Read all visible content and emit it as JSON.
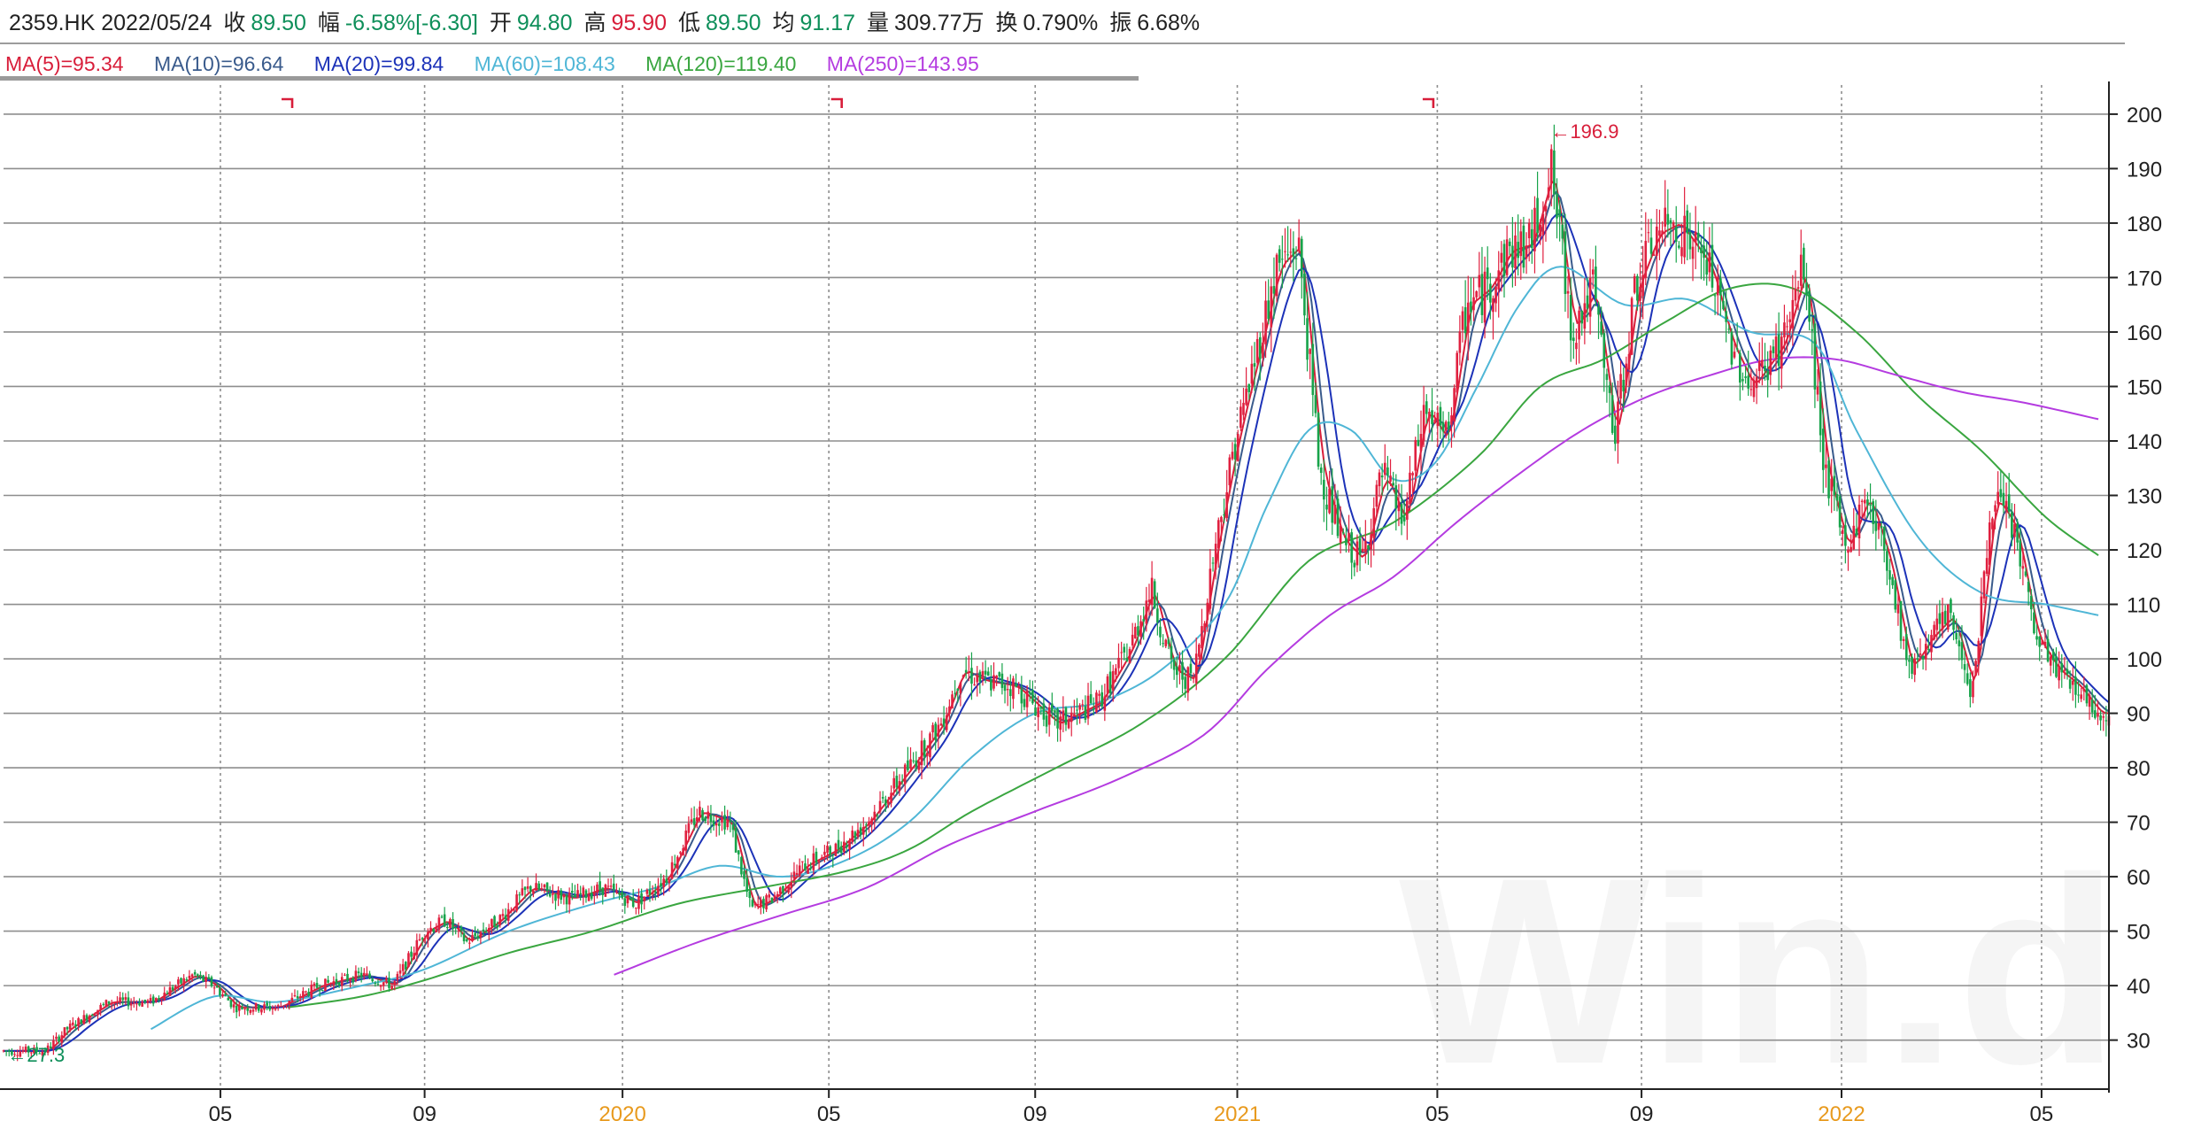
{
  "header": {
    "code_date": "2359.HK 2022/05/24",
    "close_label": "收",
    "close": "89.50",
    "change_label": "幅",
    "change": "-6.58%[-6.30]",
    "open_label": "开",
    "open": "94.80",
    "high_label": "高",
    "high": "95.90",
    "low_label": "低",
    "low": "89.50",
    "avg_label": "均",
    "avg": "91.17",
    "vol_label": "量",
    "vol": "309.77万",
    "turnover_label": "换",
    "turnover": "0.790%",
    "amp_label": "振",
    "amp": "6.68%"
  },
  "ma_legend": [
    {
      "text": "MA(5)=95.34",
      "color": "#d81e3a"
    },
    {
      "text": "MA(10)=96.64",
      "color": "#3a5b8c"
    },
    {
      "text": "MA(20)=99.84",
      "color": "#1c32b8"
    },
    {
      "text": "MA(60)=108.43",
      "color": "#4fb6d6"
    },
    {
      "text": "MA(120)=119.40",
      "color": "#3aa640"
    },
    {
      "text": "MA(250)=143.95",
      "color": "#b43be0"
    }
  ],
  "watermark": "Win.d",
  "chart_data": {
    "type": "line",
    "ylim": [
      21,
      206
    ],
    "y_ticks": [
      30,
      40,
      50,
      60,
      70,
      80,
      90,
      100,
      110,
      120,
      130,
      140,
      150,
      160,
      170,
      180,
      190,
      200
    ],
    "x_ticks": [
      {
        "label": "05",
        "t": 0.103,
        "year": false
      },
      {
        "label": "09",
        "t": 0.2,
        "year": false
      },
      {
        "label": "2020",
        "t": 0.294,
        "year": true
      },
      {
        "label": "05",
        "t": 0.392,
        "year": false
      },
      {
        "label": "09",
        "t": 0.49,
        "year": false
      },
      {
        "label": "2021",
        "t": 0.586,
        "year": true
      },
      {
        "label": "05",
        "t": 0.681,
        "year": false
      },
      {
        "label": "09",
        "t": 0.778,
        "year": false
      },
      {
        "label": "2022",
        "t": 0.873,
        "year": true
      },
      {
        "label": "05",
        "t": 0.968,
        "year": false
      }
    ],
    "annotations": [
      {
        "text": "←196.9",
        "t": 0.734,
        "y": 196.9,
        "kind": "high"
      },
      {
        "text": "←27.3",
        "t": 0.001,
        "y": 27.3,
        "kind": "low"
      }
    ],
    "price_path": [
      [
        0.0,
        28
      ],
      [
        0.02,
        28
      ],
      [
        0.03,
        32
      ],
      [
        0.05,
        37
      ],
      [
        0.07,
        37
      ],
      [
        0.09,
        42
      ],
      [
        0.1,
        40
      ],
      [
        0.11,
        36
      ],
      [
        0.13,
        36
      ],
      [
        0.15,
        40
      ],
      [
        0.17,
        42
      ],
      [
        0.185,
        40
      ],
      [
        0.2,
        50
      ],
      [
        0.21,
        52
      ],
      [
        0.22,
        48
      ],
      [
        0.235,
        52
      ],
      [
        0.25,
        58
      ],
      [
        0.27,
        56
      ],
      [
        0.285,
        58
      ],
      [
        0.3,
        55
      ],
      [
        0.315,
        60
      ],
      [
        0.33,
        72
      ],
      [
        0.345,
        70
      ],
      [
        0.355,
        54
      ],
      [
        0.365,
        56
      ],
      [
        0.38,
        62
      ],
      [
        0.395,
        65
      ],
      [
        0.41,
        70
      ],
      [
        0.43,
        80
      ],
      [
        0.445,
        88
      ],
      [
        0.455,
        98
      ],
      [
        0.465,
        96
      ],
      [
        0.48,
        95
      ],
      [
        0.5,
        88
      ],
      [
        0.52,
        92
      ],
      [
        0.535,
        102
      ],
      [
        0.545,
        113
      ],
      [
        0.555,
        98
      ],
      [
        0.565,
        96
      ],
      [
        0.575,
        120
      ],
      [
        0.585,
        140
      ],
      [
        0.595,
        156
      ],
      [
        0.605,
        172
      ],
      [
        0.615,
        176
      ],
      [
        0.625,
        135
      ],
      [
        0.635,
        122
      ],
      [
        0.645,
        118
      ],
      [
        0.655,
        134
      ],
      [
        0.665,
        125
      ],
      [
        0.675,
        146
      ],
      [
        0.685,
        140
      ],
      [
        0.695,
        165
      ],
      [
        0.705,
        168
      ],
      [
        0.715,
        175
      ],
      [
        0.725,
        176
      ],
      [
        0.735,
        190
      ],
      [
        0.745,
        160
      ],
      [
        0.755,
        168
      ],
      [
        0.765,
        140
      ],
      [
        0.775,
        168
      ],
      [
        0.785,
        178
      ],
      [
        0.795,
        180
      ],
      [
        0.81,
        172
      ],
      [
        0.82,
        158
      ],
      [
        0.83,
        150
      ],
      [
        0.845,
        158
      ],
      [
        0.855,
        172
      ],
      [
        0.865,
        135
      ],
      [
        0.875,
        120
      ],
      [
        0.885,
        130
      ],
      [
        0.895,
        118
      ],
      [
        0.905,
        98
      ],
      [
        0.915,
        104
      ],
      [
        0.925,
        108
      ],
      [
        0.935,
        94
      ],
      [
        0.945,
        130
      ],
      [
        0.955,
        124
      ],
      [
        0.965,
        104
      ],
      [
        0.975,
        98
      ],
      [
        0.985,
        95
      ],
      [
        0.995,
        90
      ]
    ],
    "series": [
      {
        "name": "MA(5)",
        "color": "#d81e3a",
        "lag": 0.004,
        "smooth": 1
      },
      {
        "name": "MA(10)",
        "color": "#3a5b8c",
        "lag": 0.008,
        "smooth": 2
      },
      {
        "name": "MA(20)",
        "color": "#1c32b8",
        "lag": 0.016,
        "smooth": 3
      },
      {
        "name": "MA(60)",
        "color": "#4fb6d6",
        "lag": 0.045,
        "smooth": 6,
        "start": 0.07,
        "points": [
          [
            0.07,
            32
          ],
          [
            0.1,
            38
          ],
          [
            0.13,
            37
          ],
          [
            0.17,
            40
          ],
          [
            0.2,
            43
          ],
          [
            0.24,
            50
          ],
          [
            0.28,
            55
          ],
          [
            0.31,
            58
          ],
          [
            0.34,
            62
          ],
          [
            0.37,
            60
          ],
          [
            0.4,
            63
          ],
          [
            0.43,
            70
          ],
          [
            0.46,
            82
          ],
          [
            0.49,
            90
          ],
          [
            0.52,
            92
          ],
          [
            0.55,
            98
          ],
          [
            0.58,
            110
          ],
          [
            0.6,
            128
          ],
          [
            0.62,
            142
          ],
          [
            0.64,
            142
          ],
          [
            0.66,
            133
          ],
          [
            0.68,
            136
          ],
          [
            0.7,
            150
          ],
          [
            0.72,
            165
          ],
          [
            0.74,
            172
          ],
          [
            0.77,
            165
          ],
          [
            0.8,
            166
          ],
          [
            0.83,
            160
          ],
          [
            0.86,
            158
          ],
          [
            0.88,
            142
          ],
          [
            0.91,
            122
          ],
          [
            0.94,
            112
          ],
          [
            0.97,
            110
          ],
          [
            0.995,
            108
          ]
        ]
      },
      {
        "name": "MA(120)",
        "color": "#3aa640",
        "lag": 0.09,
        "smooth": 10,
        "start": 0.135,
        "points": [
          [
            0.135,
            36
          ],
          [
            0.17,
            38
          ],
          [
            0.2,
            41
          ],
          [
            0.24,
            46
          ],
          [
            0.28,
            50
          ],
          [
            0.32,
            55
          ],
          [
            0.36,
            58
          ],
          [
            0.4,
            61
          ],
          [
            0.43,
            65
          ],
          [
            0.46,
            72
          ],
          [
            0.5,
            80
          ],
          [
            0.54,
            88
          ],
          [
            0.58,
            100
          ],
          [
            0.62,
            118
          ],
          [
            0.66,
            125
          ],
          [
            0.7,
            137
          ],
          [
            0.73,
            150
          ],
          [
            0.76,
            155
          ],
          [
            0.79,
            162
          ],
          [
            0.82,
            168
          ],
          [
            0.85,
            168
          ],
          [
            0.88,
            160
          ],
          [
            0.91,
            148
          ],
          [
            0.94,
            138
          ],
          [
            0.97,
            126
          ],
          [
            0.995,
            119
          ]
        ]
      },
      {
        "name": "MA(250)",
        "color": "#b43be0",
        "lag": 0.18,
        "smooth": 20,
        "start": 0.29,
        "points": [
          [
            0.29,
            42
          ],
          [
            0.33,
            48
          ],
          [
            0.37,
            53
          ],
          [
            0.41,
            58
          ],
          [
            0.45,
            66
          ],
          [
            0.49,
            72
          ],
          [
            0.53,
            78
          ],
          [
            0.57,
            86
          ],
          [
            0.6,
            98
          ],
          [
            0.63,
            108
          ],
          [
            0.66,
            115
          ],
          [
            0.69,
            125
          ],
          [
            0.72,
            134
          ],
          [
            0.75,
            142
          ],
          [
            0.78,
            148
          ],
          [
            0.81,
            152
          ],
          [
            0.84,
            155
          ],
          [
            0.87,
            155
          ],
          [
            0.9,
            152
          ],
          [
            0.93,
            149
          ],
          [
            0.96,
            147
          ],
          [
            0.995,
            144
          ]
        ]
      }
    ]
  }
}
